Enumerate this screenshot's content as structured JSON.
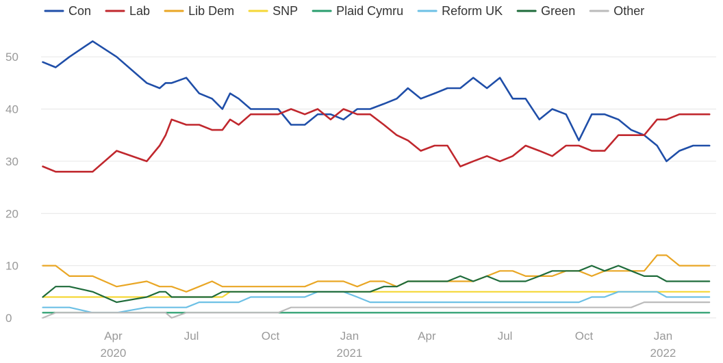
{
  "chart_data": {
    "type": "line",
    "title": "",
    "xlabel": "",
    "ylabel": "",
    "ylim": [
      0,
      55
    ],
    "y_ticks": [
      0,
      10,
      20,
      30,
      40,
      50
    ],
    "x_ticks": [
      {
        "date": "2020-04-01",
        "month": "Apr",
        "year": "2020"
      },
      {
        "date": "2020-07-01",
        "month": "Jul",
        "year": ""
      },
      {
        "date": "2020-10-01",
        "month": "Oct",
        "year": ""
      },
      {
        "date": "2021-01-01",
        "month": "Jan",
        "year": "2021"
      },
      {
        "date": "2021-04-01",
        "month": "Apr",
        "year": ""
      },
      {
        "date": "2021-07-01",
        "month": "Jul",
        "year": ""
      },
      {
        "date": "2021-10-01",
        "month": "Oct",
        "year": ""
      },
      {
        "date": "2022-01-01",
        "month": "Jan",
        "year": "2022"
      }
    ],
    "xlim": [
      "2020-01-08",
      "2022-02-27"
    ],
    "grid": "horizontal",
    "legend_position": "top",
    "x": [
      "2020-01-10",
      "2020-01-25",
      "2020-02-10",
      "2020-03-08",
      "2020-04-05",
      "2020-05-10",
      "2020-05-25",
      "2020-06-01",
      "2020-06-08",
      "2020-06-25",
      "2020-07-10",
      "2020-07-25",
      "2020-08-06",
      "2020-08-15",
      "2020-08-25",
      "2020-09-08",
      "2020-09-25",
      "2020-10-10",
      "2020-10-25",
      "2020-11-10",
      "2020-11-25",
      "2020-12-10",
      "2020-12-25",
      "2021-01-10",
      "2021-01-25",
      "2021-02-10",
      "2021-02-25",
      "2021-03-10",
      "2021-03-25",
      "2021-04-10",
      "2021-04-25",
      "2021-05-10",
      "2021-05-25",
      "2021-06-10",
      "2021-06-25",
      "2021-07-10",
      "2021-07-25",
      "2021-08-10",
      "2021-08-25",
      "2021-09-10",
      "2021-09-25",
      "2021-10-10",
      "2021-10-25",
      "2021-11-10",
      "2021-11-25",
      "2021-12-10",
      "2021-12-25",
      "2022-01-05",
      "2022-01-20",
      "2022-02-05",
      "2022-02-24"
    ],
    "series": [
      {
        "name": "Con",
        "color": "#1f4ea8",
        "values": [
          49,
          48,
          50,
          53,
          50,
          45,
          44,
          45,
          45,
          46,
          43,
          42,
          40,
          43,
          42,
          40,
          40,
          40,
          37,
          37,
          39,
          39,
          38,
          40,
          40,
          41,
          42,
          44,
          42,
          43,
          44,
          44,
          46,
          44,
          46,
          42,
          42,
          38,
          40,
          39,
          34,
          39,
          39,
          38,
          36,
          35,
          33,
          30,
          32,
          33,
          33
        ]
      },
      {
        "name": "Lab",
        "color": "#c0272d",
        "values": [
          29,
          28,
          28,
          28,
          32,
          30,
          33,
          35,
          38,
          37,
          37,
          36,
          36,
          38,
          37,
          39,
          39,
          39,
          40,
          39,
          40,
          38,
          40,
          39,
          39,
          37,
          35,
          34,
          32,
          33,
          33,
          29,
          30,
          31,
          30,
          31,
          33,
          32,
          31,
          33,
          33,
          32,
          32,
          35,
          35,
          35,
          38,
          38,
          39,
          39,
          39
        ]
      },
      {
        "name": "Lib Dem",
        "color": "#e9a624",
        "values": [
          10,
          10,
          8,
          8,
          6,
          7,
          6,
          6,
          6,
          5,
          6,
          7,
          6,
          6,
          6,
          6,
          6,
          6,
          6,
          6,
          7,
          7,
          7,
          6,
          7,
          7,
          6,
          7,
          7,
          7,
          7,
          7,
          7,
          8,
          9,
          9,
          8,
          8,
          8,
          9,
          9,
          8,
          9,
          9,
          9,
          9,
          12,
          12,
          10,
          10,
          10
        ]
      },
      {
        "name": "SNP",
        "color": "#f5d736",
        "values": [
          4,
          4,
          4,
          4,
          4,
          4,
          4,
          4,
          4,
          4,
          4,
          4,
          4,
          5,
          5,
          5,
          5,
          5,
          5,
          5,
          5,
          5,
          5,
          5,
          5,
          5,
          5,
          5,
          5,
          5,
          5,
          5,
          5,
          5,
          5,
          5,
          5,
          5,
          5,
          5,
          5,
          5,
          5,
          5,
          5,
          5,
          5,
          5,
          5,
          5,
          5
        ]
      },
      {
        "name": "Plaid Cymru",
        "color": "#2a9d6e",
        "values": [
          1,
          1,
          1,
          1,
          1,
          1,
          1,
          1,
          1,
          1,
          1,
          1,
          1,
          1,
          1,
          1,
          1,
          1,
          1,
          1,
          1,
          1,
          1,
          1,
          1,
          1,
          1,
          1,
          1,
          1,
          1,
          1,
          1,
          1,
          1,
          1,
          1,
          1,
          1,
          1,
          1,
          1,
          1,
          1,
          1,
          1,
          1,
          1,
          1,
          1,
          1
        ]
      },
      {
        "name": "Reform UK",
        "color": "#6cc0e5",
        "values": [
          2,
          2,
          2,
          1,
          1,
          2,
          2,
          2,
          2,
          2,
          3,
          3,
          3,
          3,
          3,
          4,
          4,
          4,
          4,
          4,
          5,
          5,
          5,
          4,
          3,
          3,
          3,
          3,
          3,
          3,
          3,
          3,
          3,
          3,
          3,
          3,
          3,
          3,
          3,
          3,
          3,
          4,
          4,
          5,
          5,
          5,
          5,
          4,
          4,
          4,
          4
        ]
      },
      {
        "name": "Green",
        "color": "#1e6b3a",
        "values": [
          4,
          6,
          6,
          5,
          3,
          4,
          5,
          5,
          4,
          4,
          4,
          4,
          5,
          5,
          5,
          5,
          5,
          5,
          5,
          5,
          5,
          5,
          5,
          5,
          5,
          6,
          6,
          7,
          7,
          7,
          7,
          8,
          7,
          8,
          7,
          7,
          7,
          8,
          9,
          9,
          9,
          10,
          9,
          10,
          9,
          8,
          8,
          7,
          7,
          7,
          7
        ]
      },
      {
        "name": "Other",
        "color": "#bbbbbb",
        "values": [
          0,
          1,
          1,
          1,
          1,
          1,
          1,
          1,
          0,
          1,
          1,
          1,
          1,
          1,
          1,
          1,
          1,
          1,
          2,
          2,
          2,
          2,
          2,
          2,
          2,
          2,
          2,
          2,
          2,
          2,
          2,
          2,
          2,
          2,
          2,
          2,
          2,
          2,
          2,
          2,
          2,
          2,
          2,
          2,
          2,
          3,
          3,
          3,
          3,
          3,
          3
        ]
      }
    ]
  }
}
